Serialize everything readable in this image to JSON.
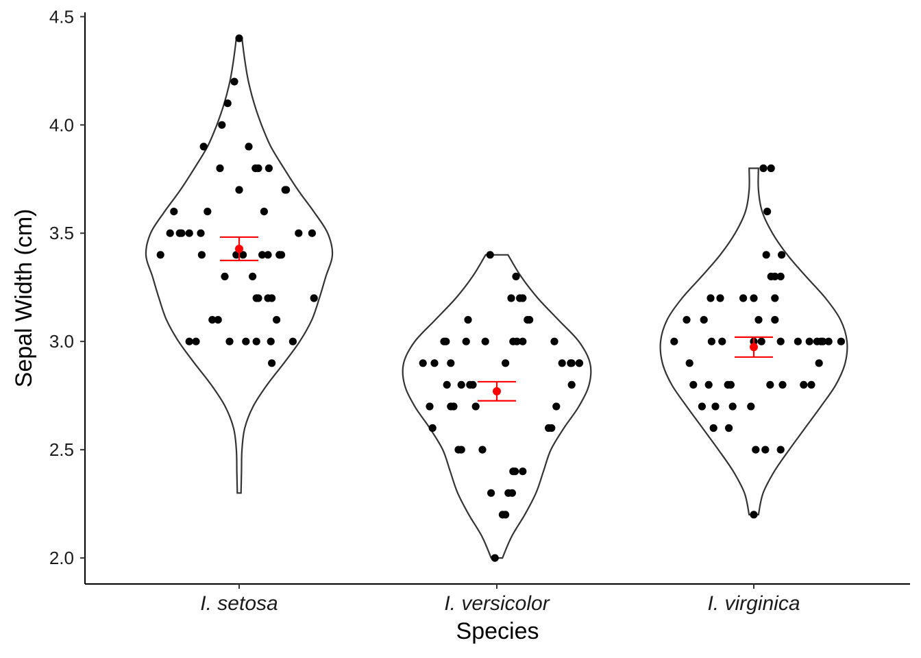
{
  "chart_data": {
    "type": "scatter",
    "subtype": "violin-with-jittered-points",
    "title": "",
    "xlabel": "Species",
    "ylabel": "Sepal Width (cm)",
    "ylim": [
      1.88,
      4.52
    ],
    "yticks": [
      2.0,
      2.5,
      3.0,
      3.5,
      4.0,
      4.5
    ],
    "ytick_labels": [
      "2.0",
      "2.5",
      "3.0",
      "3.5",
      "4.0",
      "4.5"
    ],
    "categories": [
      "I. setosa",
      "I. versicolor",
      "I. virginica"
    ],
    "grid": false,
    "legend": "none",
    "colors": {
      "points": "#000000",
      "violin_outline": "#333333",
      "mean_and_error": "#ff0000"
    },
    "series": [
      {
        "category": "I. setosa",
        "mean": 3.428,
        "error_low": 3.374,
        "error_high": 3.482,
        "violin_range": [
          2.3,
          4.4
        ],
        "violin_half_width": [
          [
            2.3,
            0.02
          ],
          [
            2.4,
            0.025
          ],
          [
            2.5,
            0.03
          ],
          [
            2.6,
            0.06
          ],
          [
            2.7,
            0.15
          ],
          [
            2.8,
            0.3
          ],
          [
            2.9,
            0.48
          ],
          [
            3.0,
            0.65
          ],
          [
            3.1,
            0.78
          ],
          [
            3.2,
            0.86
          ],
          [
            3.3,
            0.93
          ],
          [
            3.4,
            1.0
          ],
          [
            3.5,
            0.95
          ],
          [
            3.6,
            0.8
          ],
          [
            3.7,
            0.63
          ],
          [
            3.8,
            0.48
          ],
          [
            3.9,
            0.34
          ],
          [
            4.0,
            0.24
          ],
          [
            4.1,
            0.16
          ],
          [
            4.2,
            0.1
          ],
          [
            4.3,
            0.06
          ],
          [
            4.4,
            0.03
          ]
        ],
        "points": [
          [
            -0.82,
            3.4
          ],
          [
            -0.72,
            3.5
          ],
          [
            -0.68,
            3.6
          ],
          [
            -0.62,
            3.5
          ],
          [
            -0.6,
            3.5
          ],
          [
            -0.52,
            3.5
          ],
          [
            -0.52,
            3.0
          ],
          [
            -0.45,
            3.0
          ],
          [
            -0.4,
            3.5
          ],
          [
            -0.39,
            3.4
          ],
          [
            -0.37,
            3.9
          ],
          [
            -0.33,
            3.6
          ],
          [
            -0.28,
            3.1
          ],
          [
            -0.22,
            3.1
          ],
          [
            -0.2,
            3.8
          ],
          [
            -0.18,
            4.0
          ],
          [
            -0.15,
            3.3
          ],
          [
            -0.12,
            4.1
          ],
          [
            -0.1,
            3.0
          ],
          [
            -0.05,
            4.2
          ],
          [
            -0.03,
            3.4
          ],
          [
            0.0,
            4.4
          ],
          [
            0.0,
            3.7
          ],
          [
            0.04,
            3.4
          ],
          [
            0.07,
            3.0
          ],
          [
            0.1,
            3.9
          ],
          [
            0.14,
            3.3
          ],
          [
            0.17,
            3.8
          ],
          [
            0.18,
            3.2
          ],
          [
            0.18,
            3.0
          ],
          [
            0.2,
            3.8
          ],
          [
            0.2,
            3.2
          ],
          [
            0.24,
            3.4
          ],
          [
            0.26,
            3.6
          ],
          [
            0.3,
            3.4
          ],
          [
            0.3,
            3.2
          ],
          [
            0.31,
            3.8
          ],
          [
            0.33,
            3.0
          ],
          [
            0.34,
            2.9
          ],
          [
            0.34,
            3.2
          ],
          [
            0.39,
            3.1
          ],
          [
            0.42,
            3.4
          ],
          [
            0.42,
            3.4
          ],
          [
            0.44,
            3.4
          ],
          [
            0.48,
            3.7
          ],
          [
            0.49,
            3.7
          ],
          [
            0.56,
            3.0
          ],
          [
            0.62,
            3.5
          ],
          [
            0.76,
            3.5
          ],
          [
            0.78,
            3.2
          ]
        ]
      },
      {
        "category": "I. versicolor",
        "mean": 2.77,
        "error_low": 2.726,
        "error_high": 2.814,
        "violin_range": [
          2.0,
          3.4
        ],
        "violin_half_width": [
          [
            2.0,
            0.06
          ],
          [
            2.1,
            0.16
          ],
          [
            2.2,
            0.3
          ],
          [
            2.3,
            0.42
          ],
          [
            2.4,
            0.5
          ],
          [
            2.5,
            0.58
          ],
          [
            2.6,
            0.72
          ],
          [
            2.7,
            0.88
          ],
          [
            2.8,
            0.99
          ],
          [
            2.9,
            1.0
          ],
          [
            3.0,
            0.88
          ],
          [
            3.1,
            0.66
          ],
          [
            3.2,
            0.44
          ],
          [
            3.3,
            0.26
          ],
          [
            3.4,
            0.12
          ]
        ],
        "points": [
          [
            -0.77,
            2.9
          ],
          [
            -0.7,
            2.7
          ],
          [
            -0.67,
            2.6
          ],
          [
            -0.65,
            2.9
          ],
          [
            -0.55,
            3.0
          ],
          [
            -0.53,
            3.0
          ],
          [
            -0.52,
            2.8
          ],
          [
            -0.48,
            2.7
          ],
          [
            -0.48,
            2.9
          ],
          [
            -0.45,
            2.7
          ],
          [
            -0.4,
            2.5
          ],
          [
            -0.37,
            2.5
          ],
          [
            -0.37,
            2.8
          ],
          [
            -0.32,
            3.0
          ],
          [
            -0.3,
            3.1
          ],
          [
            -0.28,
            2.8
          ],
          [
            -0.25,
            2.8
          ],
          [
            -0.22,
            2.7
          ],
          [
            -0.15,
            2.5
          ],
          [
            -0.12,
            3.0
          ],
          [
            -0.07,
            3.4
          ],
          [
            -0.06,
            2.3
          ],
          [
            -0.02,
            2.0
          ],
          [
            0.06,
            2.2
          ],
          [
            0.09,
            2.2
          ],
          [
            0.09,
            2.9
          ],
          [
            0.12,
            2.3
          ],
          [
            0.15,
            3.2
          ],
          [
            0.16,
            2.3
          ],
          [
            0.17,
            3.0
          ],
          [
            0.17,
            2.4
          ],
          [
            0.19,
            2.4
          ],
          [
            0.2,
            3.3
          ],
          [
            0.21,
            3.0
          ],
          [
            0.24,
            3.2
          ],
          [
            0.27,
            3.2
          ],
          [
            0.27,
            2.4
          ],
          [
            0.27,
            3.0
          ],
          [
            0.32,
            3.1
          ],
          [
            0.34,
            3.1
          ],
          [
            0.54,
            2.6
          ],
          [
            0.57,
            2.6
          ],
          [
            0.6,
            3.0
          ],
          [
            0.62,
            2.7
          ],
          [
            0.68,
            2.9
          ],
          [
            0.77,
            2.9
          ],
          [
            0.78,
            2.8
          ],
          [
            0.78,
            2.9
          ],
          [
            0.86,
            2.9
          ],
          [
            0.86,
            2.9
          ]
        ]
      },
      {
        "category": "I. virginica",
        "mean": 2.974,
        "error_low": 2.928,
        "error_high": 3.02,
        "violin_range": [
          2.2,
          3.8
        ],
        "violin_half_width": [
          [
            2.2,
            0.05
          ],
          [
            2.3,
            0.1
          ],
          [
            2.4,
            0.22
          ],
          [
            2.5,
            0.38
          ],
          [
            2.6,
            0.55
          ],
          [
            2.7,
            0.72
          ],
          [
            2.8,
            0.88
          ],
          [
            2.9,
            0.98
          ],
          [
            3.0,
            1.0
          ],
          [
            3.1,
            0.93
          ],
          [
            3.2,
            0.77
          ],
          [
            3.3,
            0.56
          ],
          [
            3.4,
            0.36
          ],
          [
            3.5,
            0.2
          ],
          [
            3.6,
            0.09
          ],
          [
            3.7,
            0.05
          ],
          [
            3.8,
            0.05
          ]
        ],
        "points": [
          [
            -0.83,
            3.0
          ],
          [
            -0.7,
            3.1
          ],
          [
            -0.67,
            2.9
          ],
          [
            -0.63,
            2.8
          ],
          [
            -0.54,
            2.7
          ],
          [
            -0.52,
            3.1
          ],
          [
            -0.47,
            2.8
          ],
          [
            -0.45,
            3.2
          ],
          [
            -0.44,
            3.0
          ],
          [
            -0.42,
            2.6
          ],
          [
            -0.4,
            2.7
          ],
          [
            -0.35,
            3.2
          ],
          [
            -0.33,
            3.0
          ],
          [
            -0.26,
            2.6
          ],
          [
            -0.27,
            2.8
          ],
          [
            -0.24,
            2.8
          ],
          [
            -0.22,
            2.7
          ],
          [
            -0.11,
            3.2
          ],
          [
            -0.03,
            2.7
          ],
          [
            0.0,
            3.2
          ],
          [
            0.0,
            3.0
          ],
          [
            0.0,
            2.2
          ],
          [
            0.02,
            2.5
          ],
          [
            0.05,
            3.1
          ],
          [
            0.08,
            3.0
          ],
          [
            0.1,
            3.8
          ],
          [
            0.12,
            2.5
          ],
          [
            0.13,
            3.4
          ],
          [
            0.14,
            3.6
          ],
          [
            0.17,
            2.8
          ],
          [
            0.18,
            3.8
          ],
          [
            0.18,
            3.3
          ],
          [
            0.22,
            3.2
          ],
          [
            0.22,
            3.1
          ],
          [
            0.22,
            3.3
          ],
          [
            0.28,
            3.0
          ],
          [
            0.28,
            3.3
          ],
          [
            0.28,
            2.5
          ],
          [
            0.3,
            2.8
          ],
          [
            0.29,
            3.4
          ],
          [
            0.46,
            3.0
          ],
          [
            0.52,
            2.8
          ],
          [
            0.58,
            3.0
          ],
          [
            0.6,
            2.8
          ],
          [
            0.66,
            3.0
          ],
          [
            0.68,
            2.9
          ],
          [
            0.7,
            3.0
          ],
          [
            0.72,
            3.0
          ],
          [
            0.78,
            3.0
          ],
          [
            0.91,
            3.0
          ]
        ]
      }
    ]
  }
}
